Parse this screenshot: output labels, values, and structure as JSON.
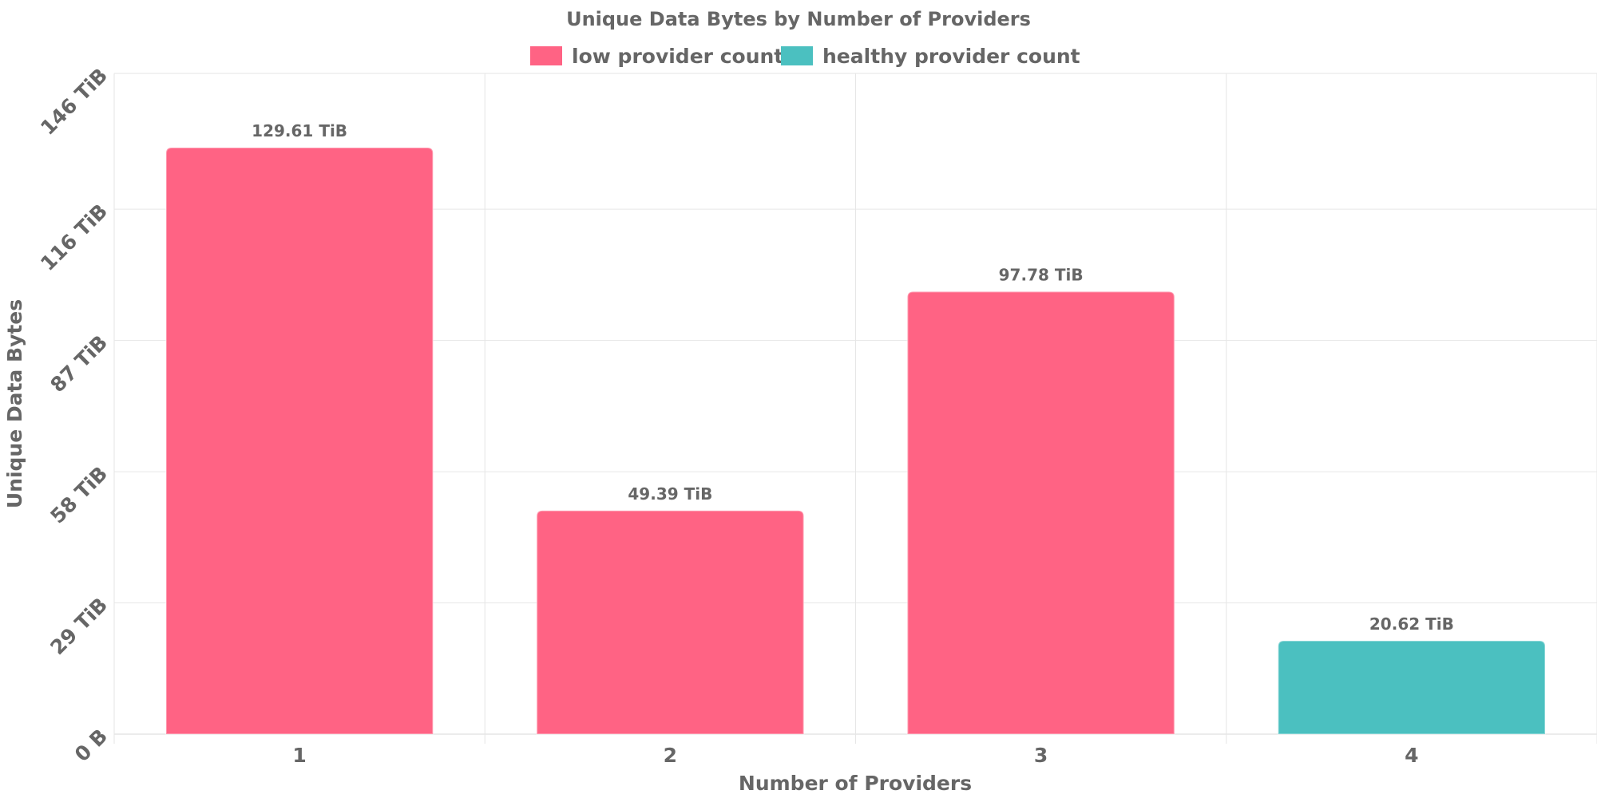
{
  "chart_data": {
    "type": "bar",
    "title": "Unique Data Bytes by Number of Providers",
    "xlabel": "Number of Providers",
    "ylabel": "Unique Data Bytes",
    "categories": [
      "1",
      "2",
      "3",
      "4"
    ],
    "values": [
      129.61,
      49.39,
      97.78,
      20.62
    ],
    "value_unit": "TiB",
    "data_labels": [
      "129.61 TiB",
      "49.39 TiB",
      "97.78 TiB",
      "20.62 TiB"
    ],
    "bar_series": [
      "low provider count",
      "low provider count",
      "low provider count",
      "healthy provider count"
    ],
    "ylim": [
      0,
      146
    ],
    "y_ticks": [
      0,
      29,
      58,
      87,
      116,
      146
    ],
    "y_tick_labels": [
      "0 B",
      "29 TiB",
      "58 TiB",
      "87 TiB",
      "116 TiB",
      "146 TiB"
    ],
    "grid": true,
    "legend_position": "top-center",
    "legend": [
      {
        "name": "low provider count",
        "color": "#ff6384"
      },
      {
        "name": "healthy provider count",
        "color": "#4bc0c0"
      }
    ]
  }
}
